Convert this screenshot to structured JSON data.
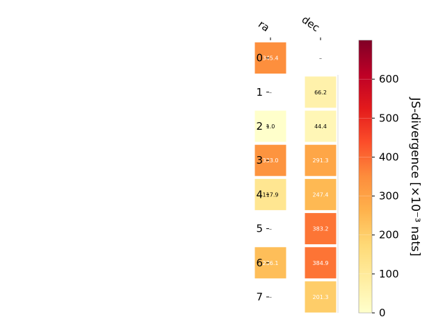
{
  "chart_data": {
    "type": "heatmap",
    "columns": [
      "ra",
      "dec"
    ],
    "rows": [
      "0",
      "1",
      "2",
      "3",
      "4",
      "5",
      "6",
      "7"
    ],
    "values": [
      [
        345.4,
        null
      ],
      [
        null,
        66.2
      ],
      [
        1.0,
        44.4
      ],
      [
        333.0,
        291.3
      ],
      [
        117.9,
        247.4
      ],
      [
        null,
        383.2
      ],
      [
        236.1,
        384.9
      ],
      [
        null,
        201.3
      ]
    ],
    "missing_label": "–",
    "colorbar": {
      "label": "JS-divergence [×10⁻³ nats]",
      "vmin": 0,
      "vmax": 700,
      "ticks": [
        "0",
        "100",
        "200",
        "300",
        "400",
        "500",
        "600"
      ],
      "colormap": "YlOrRd"
    }
  }
}
